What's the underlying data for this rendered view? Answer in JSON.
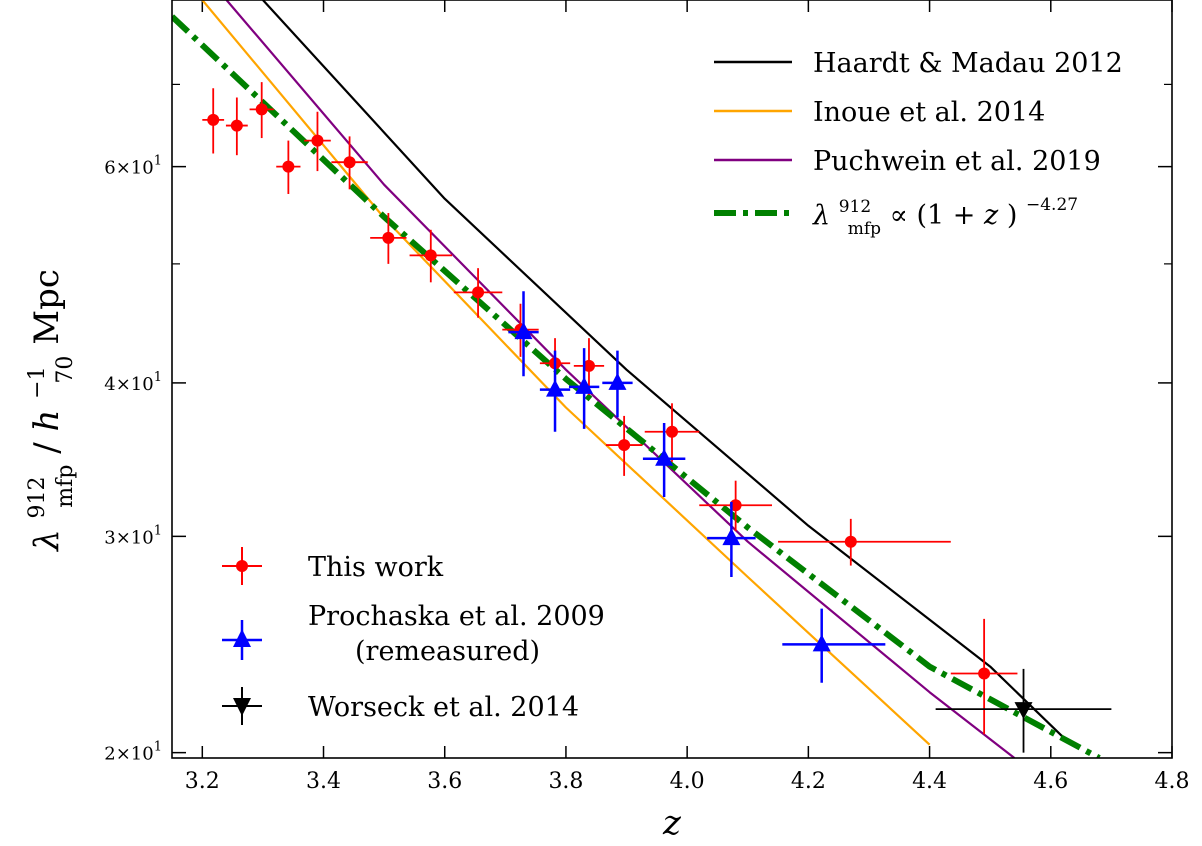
{
  "chart_data": {
    "type": "scatter",
    "xlabel": "z",
    "ylabel_parts": {
      "lambda": "λ",
      "lambda_sup": "912",
      "lambda_sub": "mfp",
      "slash": " / ",
      "h": "h",
      "h_sup": "−1",
      "h_sub": "70",
      "unit": " Mpc"
    },
    "xlim": [
      3.15,
      4.8
    ],
    "ylim": [
      19.8,
      82
    ],
    "y_scale": "log",
    "x_ticks": [
      "3.2",
      "3.4",
      "3.6",
      "3.8",
      "4.0",
      "4.2",
      "4.4",
      "4.6",
      "4.8"
    ],
    "y_tick_labels": [
      {
        "value": 20,
        "mant": "2",
        "base": "×10",
        "exp": "1"
      },
      {
        "value": 30,
        "mant": "3",
        "base": "×10",
        "exp": "1"
      },
      {
        "value": 40,
        "mant": "4",
        "base": "×10",
        "exp": "1"
      },
      {
        "value": 60,
        "mant": "6",
        "base": "×10",
        "exp": "1"
      }
    ],
    "y_minor_ticks": [
      50,
      70
    ],
    "legend_top": {
      "placement": "top-right",
      "entries": [
        {
          "label": "Haardt & Madau 2012",
          "color": "#000000",
          "style": "solid"
        },
        {
          "label": "Inoue et al. 2014",
          "color": "#ffa500",
          "style": "solid"
        },
        {
          "label": "Puchwein et al. 2019",
          "color": "#800080",
          "style": "solid"
        },
        {
          "label_parts": {
            "lambda": "λ",
            "sup": "912",
            "sub": "mfp",
            "prop": " ∝ (1 + ",
            "z": "z",
            "close": ")",
            "exp": "−4.27"
          },
          "color": "#008000",
          "style": "dashdot"
        }
      ]
    },
    "legend_bottom": {
      "placement": "bottom-left",
      "entries": [
        {
          "label": "This work",
          "color": "#ff0000",
          "marker": "circle"
        },
        {
          "label": "Prochaska et al. 2009",
          "label2": "(remeasured)",
          "color": "#0000ff",
          "marker": "triangle-up"
        },
        {
          "label": "Worseck et al. 2014",
          "color": "#000000",
          "marker": "triangle-down"
        }
      ]
    },
    "lines": [
      {
        "name": "Haardt & Madau 2012",
        "color": "#000000",
        "x": [
          3.3,
          3.6,
          3.9,
          4.2,
          4.5,
          4.62
        ],
        "y": [
          82,
          56.5,
          41.0,
          30.6,
          23.5,
          20.6
        ]
      },
      {
        "name": "Inoue et al. 2014",
        "color": "#ffa500",
        "x": [
          3.2,
          3.5,
          3.8,
          4.1,
          4.4
        ],
        "y": [
          82,
          54.5,
          38.2,
          27.8,
          20.3
        ]
      },
      {
        "name": "Puchwein et al. 2019",
        "color": "#800080",
        "x": [
          3.24,
          3.5,
          3.8,
          4.1,
          4.4,
          4.54
        ],
        "y": [
          82,
          58.0,
          41.0,
          29.7,
          22.4,
          19.8
        ]
      },
      {
        "name": "power law",
        "color": "#008000",
        "x": [
          3.15,
          3.5,
          3.8,
          4.1,
          4.4,
          4.68
        ],
        "y": [
          79.5,
          54.6,
          40.3,
          30.5,
          23.5,
          19.8
        ]
      }
    ],
    "series": [
      {
        "name": "This work",
        "color": "#ff0000",
        "marker": "circle",
        "points": [
          {
            "x": 3.218,
            "y": 65.5,
            "xerr": [
              0.018,
              0.018
            ],
            "yerr": [
              4.0,
              4.0
            ]
          },
          {
            "x": 3.257,
            "y": 64.8,
            "xerr": [
              0.018,
              0.018
            ],
            "yerr": [
              3.5,
              3.5
            ]
          },
          {
            "x": 3.298,
            "y": 66.8,
            "xerr": [
              0.02,
              0.02
            ],
            "yerr": [
              3.5,
              3.5
            ]
          },
          {
            "x": 3.342,
            "y": 60.0,
            "xerr": [
              0.02,
              0.02
            ],
            "yerr": [
              3.0,
              3.0
            ]
          },
          {
            "x": 3.39,
            "y": 63.0,
            "xerr": [
              0.022,
              0.022
            ],
            "yerr": [
              3.5,
              3.5
            ]
          },
          {
            "x": 3.443,
            "y": 60.5,
            "xerr": [
              0.03,
              0.03
            ],
            "yerr": [
              3.0,
              3.0
            ]
          },
          {
            "x": 3.507,
            "y": 52.5,
            "xerr": [
              0.03,
              0.03
            ],
            "yerr": [
              2.5,
              2.5
            ]
          },
          {
            "x": 3.577,
            "y": 50.8,
            "xerr": [
              0.035,
              0.035
            ],
            "yerr": [
              2.5,
              2.5
            ]
          },
          {
            "x": 3.655,
            "y": 47.4,
            "xerr": [
              0.04,
              0.04
            ],
            "yerr": [
              2.2,
              2.2
            ]
          },
          {
            "x": 3.725,
            "y": 44.2,
            "xerr": [
              0.03,
              0.03
            ],
            "yerr": [
              2.2,
              2.2
            ]
          },
          {
            "x": 3.782,
            "y": 41.5,
            "xerr": [
              0.025,
              0.025
            ],
            "yerr": [
              2.0,
              2.0
            ]
          },
          {
            "x": 3.838,
            "y": 41.3,
            "xerr": [
              0.025,
              0.025
            ],
            "yerr": [
              2.2,
              2.2
            ]
          },
          {
            "x": 3.896,
            "y": 35.6,
            "xerr": [
              0.03,
              0.03
            ],
            "yerr": [
              2.0,
              2.0
            ]
          },
          {
            "x": 3.975,
            "y": 36.5,
            "xerr": [
              0.045,
              0.045
            ],
            "yerr": [
              2.0,
              2.0
            ]
          },
          {
            "x": 4.08,
            "y": 31.8,
            "xerr": [
              0.06,
              0.06
            ],
            "yerr": [
              1.5,
              1.5
            ]
          },
          {
            "x": 4.27,
            "y": 29.7,
            "xerr": [
              0.12,
              0.165
            ],
            "yerr": [
              1.3,
              1.3
            ]
          },
          {
            "x": 4.49,
            "y": 23.2,
            "xerr": [
              0.055,
              0.055
            ],
            "yerr": [
              2.5,
              2.5
            ]
          }
        ]
      },
      {
        "name": "Prochaska et al. 2009",
        "color": "#0000ff",
        "marker": "triangle-up",
        "points": [
          {
            "x": 3.73,
            "y": 44.0,
            "xerr": [
              0.025,
              0.025
            ],
            "yerr": [
              3.5,
              3.5
            ]
          },
          {
            "x": 3.782,
            "y": 39.5,
            "xerr": [
              0.025,
              0.025
            ],
            "yerr": [
              3.0,
              3.0
            ]
          },
          {
            "x": 3.83,
            "y": 39.7,
            "xerr": [
              0.025,
              0.025
            ],
            "yerr": [
              3.0,
              3.0
            ]
          },
          {
            "x": 3.885,
            "y": 40.0,
            "xerr": [
              0.025,
              0.025
            ],
            "yerr": [
              2.5,
              2.5
            ]
          },
          {
            "x": 3.962,
            "y": 34.7,
            "xerr": [
              0.035,
              0.035
            ],
            "yerr": [
              2.4,
              2.4
            ]
          },
          {
            "x": 4.073,
            "y": 29.9,
            "xerr": [
              0.04,
              0.04
            ],
            "yerr": [
              2.1,
              2.1
            ]
          },
          {
            "x": 4.222,
            "y": 24.5,
            "xerr": [
              0.065,
              0.105
            ],
            "yerr": [
              1.7,
              1.7
            ]
          }
        ]
      },
      {
        "name": "Worseck et al. 2014",
        "color": "#000000",
        "marker": "triangle-down",
        "points": [
          {
            "x": 4.555,
            "y": 21.7,
            "xerr": [
              0.145,
              0.145
            ],
            "yerr": [
              1.7,
              1.7
            ]
          }
        ]
      }
    ]
  }
}
